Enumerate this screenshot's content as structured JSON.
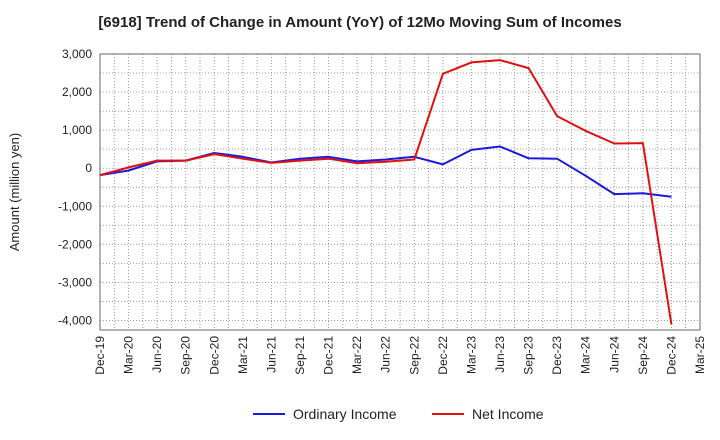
{
  "title": "[6918]  Trend of Change in Amount (YoY) of 12Mo Moving Sum of Incomes",
  "chart_data": {
    "type": "line",
    "title": "[6918]  Trend of Change in Amount (YoY) of 12Mo Moving Sum of Incomes",
    "xlabel": "",
    "ylabel": "Amount (million yen)",
    "ylim": [
      -4250,
      3000
    ],
    "yticks": [
      3000,
      2000,
      1000,
      0,
      -1000,
      -2000,
      -3000,
      -4000
    ],
    "ytick_labels": [
      "3,000",
      "2,000",
      "1,000",
      "0",
      "-1,000",
      "-2,000",
      "-3,000",
      "-4,000"
    ],
    "categories": [
      "Dec-19",
      "Mar-20",
      "Jun-20",
      "Sep-20",
      "Dec-20",
      "Mar-21",
      "Jun-21",
      "Sep-21",
      "Dec-21",
      "Mar-22",
      "Jun-22",
      "Sep-22",
      "Dec-22",
      "Mar-23",
      "Jun-23",
      "Sep-23",
      "Dec-23",
      "Mar-24",
      "Jun-24",
      "Sep-24",
      "Dec-24",
      "Mar-25"
    ],
    "grid": true,
    "legend_position": "bottom",
    "series": [
      {
        "name": "Ordinary Income",
        "color": "#1a1adc",
        "values": [
          -180,
          -60,
          180,
          200,
          400,
          300,
          150,
          250,
          300,
          180,
          230,
          300,
          100,
          480,
          570,
          260,
          250,
          -200,
          -680,
          -660,
          -750,
          null
        ]
      },
      {
        "name": "Net Income",
        "color": "#e01010",
        "values": [
          -180,
          20,
          200,
          200,
          370,
          250,
          140,
          200,
          250,
          130,
          170,
          230,
          2480,
          2780,
          2840,
          2630,
          1370,
          980,
          650,
          660,
          -4100,
          null
        ]
      }
    ]
  }
}
